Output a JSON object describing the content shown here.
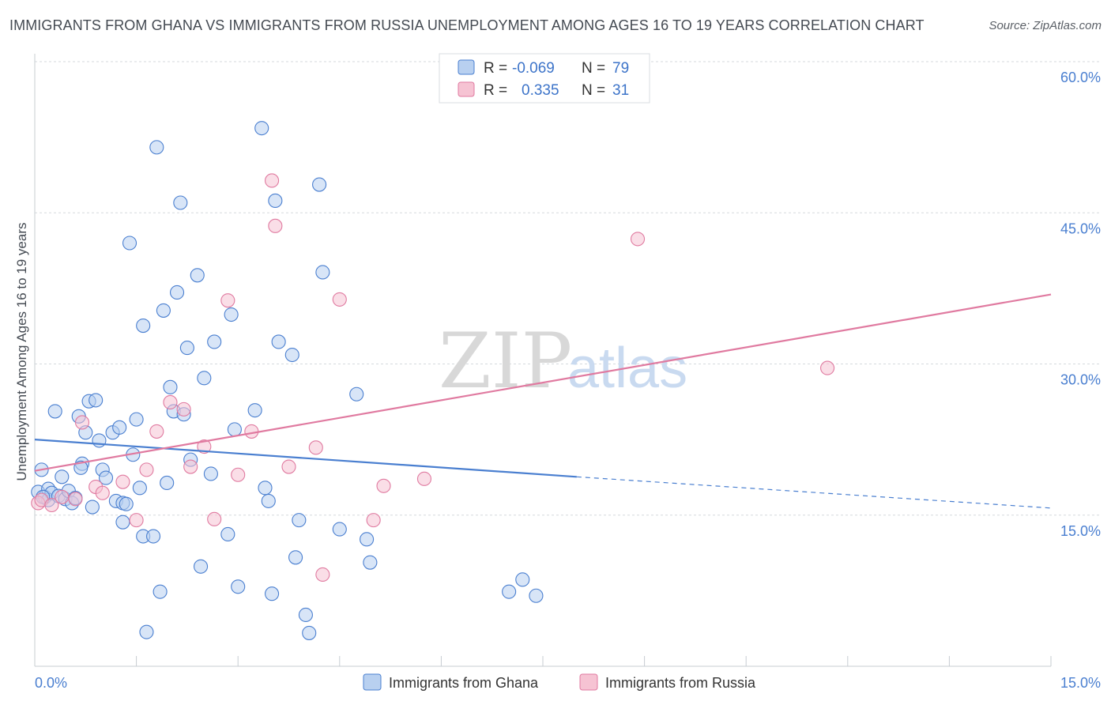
{
  "title": "IMMIGRANTS FROM GHANA VS IMMIGRANTS FROM RUSSIA UNEMPLOYMENT AMONG AGES 16 TO 19 YEARS CORRELATION CHART",
  "source": "Source: ZipAtlas.com",
  "watermark": {
    "zip": "ZIP",
    "atlas": "atlas"
  },
  "colors": {
    "ghana": "#4a7fd0",
    "ghana_fill": "#b8d0f0",
    "russia": "#e07aa0",
    "russia_fill": "#f6c3d3",
    "grid": "#d5d9de",
    "axis_text": "#4a7fd0"
  },
  "legend": {
    "rows": [
      {
        "r_label": "R =",
        "r_value": "-0.069",
        "n_label": "N =",
        "n_value": "79"
      },
      {
        "r_label": "R =",
        "r_value": "0.335",
        "n_label": "N =",
        "n_value": "31"
      }
    ]
  },
  "bottom_legend": [
    "Immigrants from Ghana",
    "Immigrants from Russia"
  ],
  "chart_data": {
    "type": "scatter",
    "title": "IMMIGRANTS FROM GHANA VS IMMIGRANTS FROM RUSSIA UNEMPLOYMENT AMONG AGES 16 TO 19 YEARS CORRELATION CHART",
    "xlabel": "",
    "ylabel": "Unemployment Among Ages 16 to 19 years",
    "xlim": [
      0,
      15
    ],
    "ylim": [
      0,
      60
    ],
    "x_tick_labels": [
      "0.0%",
      "15.0%"
    ],
    "y_ticks": [
      15,
      30,
      45,
      60
    ],
    "y_tick_labels": [
      "15.0%",
      "30.0%",
      "45.0%",
      "60.0%"
    ],
    "grid": true,
    "legend_position": "top-center",
    "series": [
      {
        "name": "Immigrants from Ghana",
        "R": -0.069,
        "N": 79,
        "trend": {
          "x0": 0.0,
          "y0": 22.5,
          "x1": 8.0,
          "y1": 18.8,
          "dashed_to_x": 15.0,
          "dashed_to_y": 15.7
        },
        "points": [
          [
            0.05,
            17.3
          ],
          [
            0.1,
            19.5
          ],
          [
            0.15,
            16.8
          ],
          [
            0.2,
            17.6
          ],
          [
            0.2,
            16.5
          ],
          [
            0.25,
            17.2
          ],
          [
            0.3,
            25.3
          ],
          [
            0.35,
            16.9
          ],
          [
            0.4,
            18.8
          ],
          [
            0.45,
            16.6
          ],
          [
            0.5,
            17.4
          ],
          [
            0.55,
            16.2
          ],
          [
            0.6,
            16.7
          ],
          [
            0.65,
            24.8
          ],
          [
            0.7,
            20.1
          ],
          [
            0.75,
            23.2
          ],
          [
            0.8,
            26.3
          ],
          [
            0.85,
            15.8
          ],
          [
            0.9,
            26.4
          ],
          [
            0.95,
            22.4
          ],
          [
            1.0,
            19.5
          ],
          [
            1.05,
            18.7
          ],
          [
            1.15,
            23.2
          ],
          [
            1.2,
            16.4
          ],
          [
            1.25,
            23.7
          ],
          [
            1.3,
            14.3
          ],
          [
            1.3,
            16.2
          ],
          [
            1.35,
            16.1
          ],
          [
            1.4,
            42.0
          ],
          [
            1.45,
            21.0
          ],
          [
            1.5,
            24.5
          ],
          [
            1.55,
            17.7
          ],
          [
            1.6,
            12.9
          ],
          [
            1.6,
            33.8
          ],
          [
            1.75,
            12.9
          ],
          [
            1.8,
            51.5
          ],
          [
            1.85,
            7.4
          ],
          [
            1.9,
            35.3
          ],
          [
            1.95,
            18.2
          ],
          [
            2.0,
            27.7
          ],
          [
            2.05,
            25.3
          ],
          [
            2.1,
            37.1
          ],
          [
            2.15,
            46.0
          ],
          [
            2.2,
            25.0
          ],
          [
            2.25,
            31.6
          ],
          [
            2.3,
            20.5
          ],
          [
            2.4,
            38.8
          ],
          [
            2.45,
            9.9
          ],
          [
            2.5,
            28.6
          ],
          [
            2.6,
            19.1
          ],
          [
            2.65,
            32.2
          ],
          [
            2.85,
            13.1
          ],
          [
            2.9,
            34.9
          ],
          [
            2.95,
            23.5
          ],
          [
            3.0,
            7.9
          ],
          [
            3.25,
            25.4
          ],
          [
            3.35,
            53.4
          ],
          [
            3.4,
            17.7
          ],
          [
            3.45,
            16.4
          ],
          [
            3.5,
            7.2
          ],
          [
            3.55,
            46.2
          ],
          [
            3.6,
            32.2
          ],
          [
            3.8,
            30.9
          ],
          [
            3.85,
            10.8
          ],
          [
            3.9,
            14.5
          ],
          [
            4.0,
            5.1
          ],
          [
            4.05,
            3.3
          ],
          [
            4.2,
            47.8
          ],
          [
            4.25,
            39.1
          ],
          [
            4.5,
            13.6
          ],
          [
            4.75,
            27.0
          ],
          [
            4.9,
            12.6
          ],
          [
            4.95,
            10.3
          ],
          [
            7.0,
            7.4
          ],
          [
            7.2,
            8.6
          ],
          [
            7.4,
            7.0
          ],
          [
            1.65,
            3.4
          ],
          [
            0.12,
            16.8
          ],
          [
            0.68,
            19.7
          ]
        ]
      },
      {
        "name": "Immigrants from Russia",
        "R": 0.335,
        "N": 31,
        "trend": {
          "x0": 0.0,
          "y0": 19.4,
          "x1": 15.0,
          "y1": 36.9
        },
        "points": [
          [
            0.05,
            16.2
          ],
          [
            0.1,
            16.5
          ],
          [
            0.25,
            16.0
          ],
          [
            0.4,
            16.8
          ],
          [
            0.6,
            16.6
          ],
          [
            0.7,
            24.2
          ],
          [
            0.9,
            17.8
          ],
          [
            1.0,
            17.2
          ],
          [
            1.3,
            18.3
          ],
          [
            1.5,
            14.5
          ],
          [
            1.65,
            19.5
          ],
          [
            1.8,
            23.3
          ],
          [
            2.0,
            26.2
          ],
          [
            2.2,
            25.5
          ],
          [
            2.3,
            19.8
          ],
          [
            2.5,
            21.8
          ],
          [
            2.65,
            14.6
          ],
          [
            2.85,
            36.3
          ],
          [
            3.0,
            19.0
          ],
          [
            3.2,
            23.3
          ],
          [
            3.5,
            48.2
          ],
          [
            3.55,
            43.7
          ],
          [
            3.75,
            19.8
          ],
          [
            4.15,
            21.7
          ],
          [
            4.25,
            9.1
          ],
          [
            4.5,
            36.4
          ],
          [
            5.0,
            14.5
          ],
          [
            5.15,
            17.9
          ],
          [
            5.75,
            18.6
          ],
          [
            8.9,
            42.4
          ],
          [
            11.7,
            29.6
          ]
        ]
      }
    ]
  }
}
